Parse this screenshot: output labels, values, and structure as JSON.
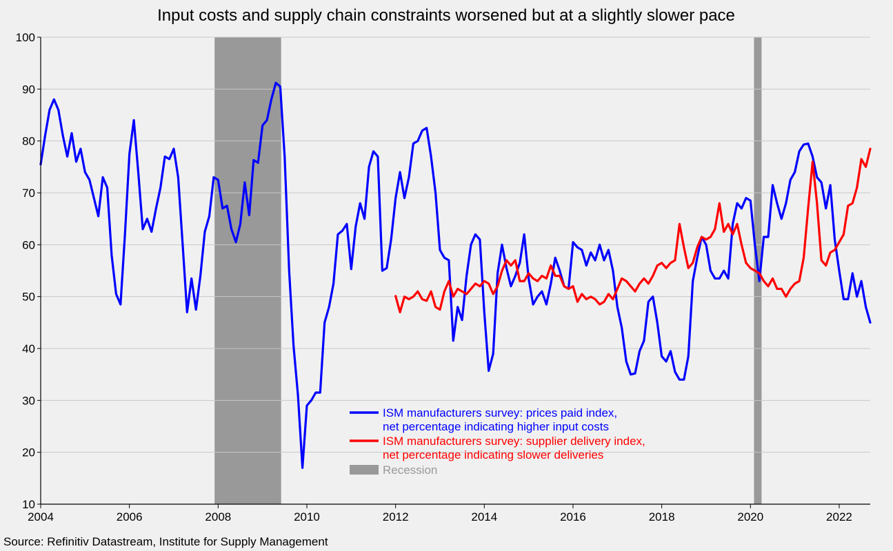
{
  "colors": {
    "background": "#f0f0f0",
    "grid": "#c8c8c8",
    "recession": "#999999",
    "prices": "#0000ff",
    "delivery": "#ff0000",
    "recession_text": "#999999"
  },
  "chart_data": {
    "type": "line",
    "title": "Input costs and supply chain constraints worsened but at a slightly slower pace",
    "source": "Source: Refinitiv Datastream, Institute for Supply Management",
    "xlim": [
      2004,
      2022.7
    ],
    "ylim": [
      10,
      100
    ],
    "x_ticks": [
      "2004",
      "2006",
      "2008",
      "2010",
      "2012",
      "2014",
      "2016",
      "2018",
      "2020",
      "2022"
    ],
    "y_ticks": [
      "10",
      "20",
      "30",
      "40",
      "50",
      "60",
      "70",
      "80",
      "90",
      "100"
    ],
    "grid": true,
    "legend_position": "bottom-center",
    "recessions": [
      {
        "start": 2007.92,
        "end": 2009.42
      },
      {
        "start": 2020.08,
        "end": 2020.25
      }
    ],
    "series": [
      {
        "name": "ISM manufacturers survey: prices paid index,",
        "name_line2": "net percentage indicating higher input costs",
        "points": [
          [
            2004.0,
            75.5
          ],
          [
            2004.1,
            81
          ],
          [
            2004.2,
            86
          ],
          [
            2004.3,
            88
          ],
          [
            2004.4,
            86
          ],
          [
            2004.5,
            81
          ],
          [
            2004.6,
            77
          ],
          [
            2004.7,
            81.5
          ],
          [
            2004.8,
            76
          ],
          [
            2004.9,
            78.5
          ],
          [
            2005.0,
            74
          ],
          [
            2005.1,
            72.5
          ],
          [
            2005.2,
            69
          ],
          [
            2005.3,
            65.5
          ],
          [
            2005.4,
            73
          ],
          [
            2005.5,
            71
          ],
          [
            2005.6,
            58
          ],
          [
            2005.7,
            50.5
          ],
          [
            2005.8,
            48.5
          ],
          [
            2005.9,
            62
          ],
          [
            2006.0,
            77.5
          ],
          [
            2006.1,
            84
          ],
          [
            2006.2,
            74
          ],
          [
            2006.3,
            63
          ],
          [
            2006.4,
            65
          ],
          [
            2006.5,
            62.5
          ],
          [
            2006.6,
            67
          ],
          [
            2006.7,
            71
          ],
          [
            2006.8,
            77
          ],
          [
            2006.9,
            76.5
          ],
          [
            2007.0,
            78.5
          ],
          [
            2007.1,
            73
          ],
          [
            2007.2,
            60
          ],
          [
            2007.3,
            47
          ],
          [
            2007.4,
            53.5
          ],
          [
            2007.5,
            47.5
          ],
          [
            2007.6,
            54
          ],
          [
            2007.7,
            62.5
          ],
          [
            2007.8,
            65.5
          ],
          [
            2007.9,
            73
          ],
          [
            2008.0,
            72.5
          ],
          [
            2008.1,
            67
          ],
          [
            2008.2,
            67.5
          ],
          [
            2008.3,
            63
          ],
          [
            2008.4,
            60.5
          ],
          [
            2008.5,
            64
          ],
          [
            2008.6,
            72
          ],
          [
            2008.7,
            65.7
          ],
          [
            2008.8,
            76.3
          ],
          [
            2008.9,
            75.8
          ],
          [
            2009.0,
            83
          ],
          [
            2009.1,
            84
          ],
          [
            2009.2,
            88
          ],
          [
            2009.3,
            91.2
          ],
          [
            2009.4,
            90.5
          ],
          [
            2009.5,
            77
          ],
          [
            2009.6,
            55
          ],
          [
            2009.7,
            40.5
          ],
          [
            2009.8,
            31
          ],
          [
            2009.9,
            17
          ],
          [
            2010.0,
            29
          ],
          [
            2010.1,
            30
          ],
          [
            2010.2,
            31.5
          ],
          [
            2010.3,
            31.5
          ],
          [
            2010.4,
            45
          ],
          [
            2010.5,
            48
          ],
          [
            2010.6,
            52.5
          ],
          [
            2010.7,
            62
          ],
          [
            2010.8,
            62.7
          ],
          [
            2010.9,
            64
          ],
          [
            2011.0,
            55.3
          ],
          [
            2011.1,
            63.5
          ],
          [
            2011.2,
            68
          ],
          [
            2011.3,
            65
          ],
          [
            2011.4,
            75
          ],
          [
            2011.5,
            78
          ],
          [
            2011.6,
            77
          ],
          [
            2011.7,
            55
          ],
          [
            2011.8,
            55.5
          ],
          [
            2011.9,
            61
          ],
          [
            2012.0,
            69
          ],
          [
            2012.1,
            74
          ],
          [
            2012.2,
            69
          ],
          [
            2012.3,
            73
          ],
          [
            2012.4,
            79.5
          ],
          [
            2012.5,
            80
          ],
          [
            2012.6,
            82
          ],
          [
            2012.7,
            82.5
          ],
          [
            2012.8,
            77
          ],
          [
            2012.9,
            70
          ],
          [
            2013.0,
            59
          ],
          [
            2013.1,
            57.5
          ],
          [
            2013.2,
            57
          ],
          [
            2013.3,
            41.5
          ],
          [
            2013.4,
            48
          ],
          [
            2013.5,
            45.5
          ],
          [
            2013.6,
            54
          ],
          [
            2013.7,
            60
          ],
          [
            2013.8,
            62
          ],
          [
            2013.9,
            61
          ],
          [
            2014.0,
            47
          ],
          [
            2014.1,
            35.7
          ],
          [
            2014.2,
            39
          ],
          [
            2014.3,
            54.5
          ],
          [
            2014.4,
            60
          ],
          [
            2014.5,
            55.5
          ],
          [
            2014.6,
            52
          ],
          [
            2014.7,
            54
          ],
          [
            2014.8,
            56.5
          ],
          [
            2014.9,
            62
          ],
          [
            2015.0,
            53.5
          ],
          [
            2015.1,
            48.5
          ],
          [
            2015.2,
            50
          ],
          [
            2015.3,
            51
          ],
          [
            2015.4,
            48.5
          ],
          [
            2015.5,
            52.5
          ],
          [
            2015.6,
            57.5
          ],
          [
            2015.7,
            55
          ],
          [
            2015.8,
            52
          ],
          [
            2015.9,
            51.5
          ],
          [
            2016.0,
            60.5
          ],
          [
            2016.1,
            59.5
          ],
          [
            2016.2,
            59
          ],
          [
            2016.3,
            56
          ],
          [
            2016.4,
            58.5
          ],
          [
            2016.5,
            57
          ],
          [
            2016.6,
            60
          ],
          [
            2016.7,
            57
          ],
          [
            2016.8,
            59
          ],
          [
            2016.9,
            55
          ],
          [
            2017.0,
            48
          ],
          [
            2017.1,
            44
          ],
          [
            2017.2,
            37.5
          ],
          [
            2017.3,
            35
          ],
          [
            2017.4,
            35.2
          ],
          [
            2017.5,
            39.5
          ],
          [
            2017.6,
            41.5
          ],
          [
            2017.7,
            49
          ],
          [
            2017.8,
            50
          ],
          [
            2017.9,
            45
          ],
          [
            2018.0,
            38.5
          ],
          [
            2018.1,
            37.5
          ],
          [
            2018.2,
            39.5
          ],
          [
            2018.3,
            35.5
          ],
          [
            2018.4,
            34
          ],
          [
            2018.5,
            34
          ],
          [
            2018.6,
            38.5
          ],
          [
            2018.7,
            53
          ],
          [
            2018.8,
            57.5
          ],
          [
            2018.9,
            61.5
          ],
          [
            2019.0,
            60
          ],
          [
            2019.1,
            55
          ],
          [
            2019.2,
            53.5
          ],
          [
            2019.3,
            53.5
          ],
          [
            2019.4,
            55
          ],
          [
            2019.5,
            53.5
          ],
          [
            2019.6,
            64
          ],
          [
            2019.7,
            68
          ],
          [
            2019.8,
            67
          ],
          [
            2019.9,
            69
          ],
          [
            2020.0,
            68.5
          ],
          [
            2020.1,
            60
          ],
          [
            2020.2,
            53
          ],
          [
            2020.3,
            61.5
          ],
          [
            2020.4,
            61.5
          ],
          [
            2020.5,
            71.5
          ],
          [
            2020.6,
            68
          ],
          [
            2020.7,
            65
          ],
          [
            2020.8,
            68
          ],
          [
            2020.9,
            72.5
          ],
          [
            2021.0,
            74
          ],
          [
            2021.1,
            78
          ],
          [
            2021.2,
            79.3
          ],
          [
            2021.3,
            79.5
          ],
          [
            2021.4,
            77
          ],
          [
            2021.5,
            73
          ],
          [
            2021.6,
            72
          ],
          [
            2021.7,
            67
          ],
          [
            2021.8,
            71.5
          ],
          [
            2021.9,
            61
          ],
          [
            2022.0,
            55
          ],
          [
            2022.1,
            49.5
          ],
          [
            2022.2,
            49.5
          ],
          [
            2022.3,
            54.5
          ],
          [
            2022.4,
            50
          ],
          [
            2022.5,
            53
          ],
          [
            2022.6,
            48
          ],
          [
            2022.7,
            45
          ]
        ]
      },
      {
        "name": "ISM manufacturers survey: supplier delivery index,",
        "name_line2": "net percentage indicating slower deliveries",
        "points": [
          [
            2012.0,
            50.1
          ],
          [
            2012.1,
            47
          ],
          [
            2012.2,
            50
          ],
          [
            2012.3,
            49.5
          ],
          [
            2012.4,
            50
          ],
          [
            2012.5,
            51
          ],
          [
            2012.6,
            49.5
          ],
          [
            2012.7,
            49.2
          ],
          [
            2012.8,
            51
          ],
          [
            2012.9,
            48
          ],
          [
            2013.0,
            47.5
          ],
          [
            2013.1,
            51
          ],
          [
            2013.2,
            53
          ],
          [
            2013.3,
            50
          ],
          [
            2013.4,
            51.5
          ],
          [
            2013.5,
            51
          ],
          [
            2013.6,
            50.5
          ],
          [
            2013.7,
            51.5
          ],
          [
            2013.8,
            52.5
          ],
          [
            2013.9,
            52
          ],
          [
            2014.0,
            53
          ],
          [
            2014.1,
            52.5
          ],
          [
            2014.2,
            50.5
          ],
          [
            2014.3,
            52
          ],
          [
            2014.4,
            55
          ],
          [
            2014.5,
            57
          ],
          [
            2014.6,
            56
          ],
          [
            2014.7,
            57
          ],
          [
            2014.8,
            53
          ],
          [
            2014.9,
            53
          ],
          [
            2015.0,
            54.5
          ],
          [
            2015.1,
            53.5
          ],
          [
            2015.2,
            53
          ],
          [
            2015.3,
            54
          ],
          [
            2015.4,
            53.5
          ],
          [
            2015.5,
            56
          ],
          [
            2015.6,
            54
          ],
          [
            2015.7,
            54
          ],
          [
            2015.8,
            52
          ],
          [
            2015.9,
            51.5
          ],
          [
            2016.0,
            52
          ],
          [
            2016.1,
            49
          ],
          [
            2016.2,
            50.5
          ],
          [
            2016.3,
            49.5
          ],
          [
            2016.4,
            50
          ],
          [
            2016.5,
            49.5
          ],
          [
            2016.6,
            48.5
          ],
          [
            2016.7,
            49
          ],
          [
            2016.8,
            50.5
          ],
          [
            2016.9,
            49.5
          ],
          [
            2017.0,
            51.5
          ],
          [
            2017.1,
            53.5
          ],
          [
            2017.2,
            53
          ],
          [
            2017.3,
            52
          ],
          [
            2017.4,
            51
          ],
          [
            2017.5,
            52.5
          ],
          [
            2017.6,
            53.5
          ],
          [
            2017.7,
            52.5
          ],
          [
            2017.8,
            54
          ],
          [
            2017.9,
            56
          ],
          [
            2018.0,
            56.5
          ],
          [
            2018.1,
            55.5
          ],
          [
            2018.2,
            56.5
          ],
          [
            2018.3,
            57
          ],
          [
            2018.4,
            64
          ],
          [
            2018.5,
            59.5
          ],
          [
            2018.6,
            55.5
          ],
          [
            2018.7,
            56.5
          ],
          [
            2018.8,
            59.5
          ],
          [
            2018.9,
            61.5
          ],
          [
            2019.0,
            61
          ],
          [
            2019.1,
            61.5
          ],
          [
            2019.2,
            63
          ],
          [
            2019.3,
            68
          ],
          [
            2019.4,
            62.5
          ],
          [
            2019.5,
            64
          ],
          [
            2019.6,
            62
          ],
          [
            2019.7,
            64
          ],
          [
            2019.8,
            60
          ],
          [
            2019.9,
            56.5
          ],
          [
            2020.0,
            55.5
          ],
          [
            2020.1,
            55
          ],
          [
            2020.2,
            54.5
          ],
          [
            2020.3,
            53
          ],
          [
            2020.4,
            52
          ],
          [
            2020.5,
            53.5
          ],
          [
            2020.6,
            51.5
          ],
          [
            2020.7,
            51.5
          ],
          [
            2020.8,
            50
          ],
          [
            2020.9,
            51.5
          ],
          [
            2021.0,
            52.5
          ],
          [
            2021.1,
            53
          ],
          [
            2021.2,
            57.5
          ],
          [
            2021.3,
            67
          ],
          [
            2021.4,
            76
          ],
          [
            2021.5,
            68
          ],
          [
            2021.6,
            57
          ],
          [
            2021.7,
            56
          ],
          [
            2021.8,
            58.5
          ],
          [
            2021.9,
            59
          ],
          [
            2022.0,
            60.5
          ],
          [
            2022.1,
            62
          ],
          [
            2022.2,
            67.5
          ],
          [
            2022.3,
            68
          ],
          [
            2022.4,
            71
          ],
          [
            2022.5,
            76.5
          ],
          [
            2022.6,
            75
          ],
          [
            2022.7,
            78.5
          ]
        ]
      }
    ],
    "legend_recession": "Recession"
  }
}
